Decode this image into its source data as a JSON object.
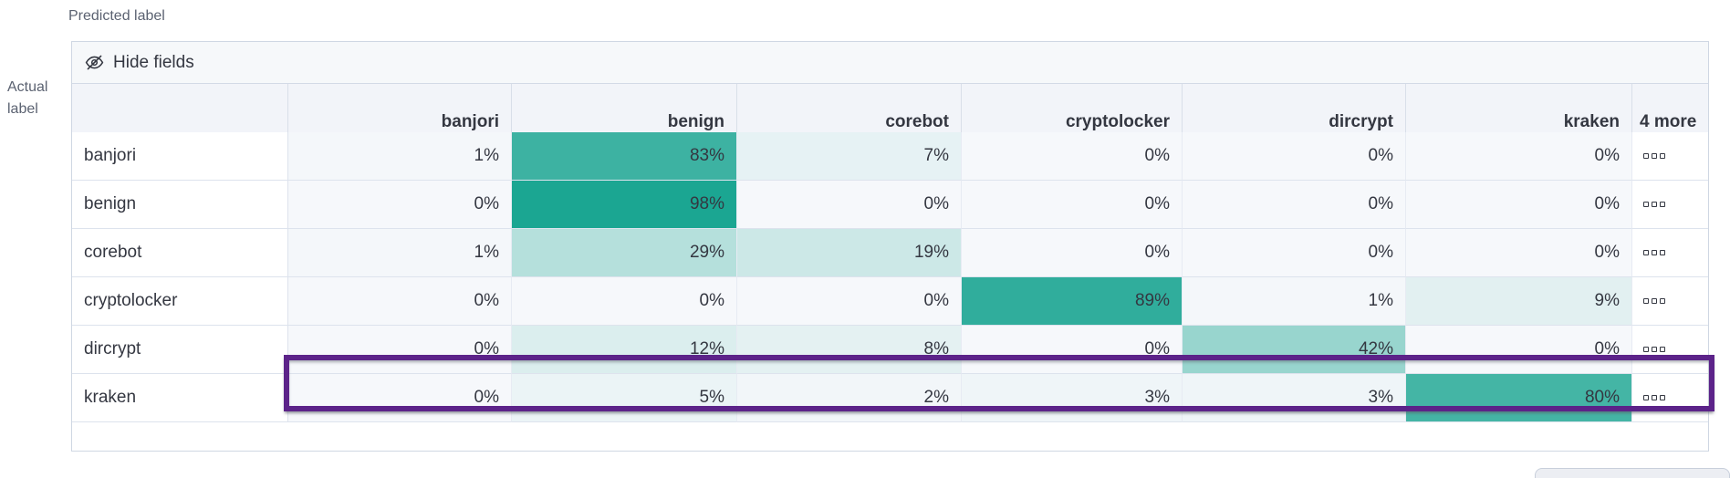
{
  "labels": {
    "predicted": "Predicted label",
    "actual": [
      "Actual",
      "label"
    ]
  },
  "toolbar": {
    "hide_fields": "Hide fields"
  },
  "icons": {
    "toolbar_icon": "eye-closed-icon",
    "row_actions_icon": "boxes-horizontal-icon"
  },
  "chart_data": {
    "type": "heatmap",
    "subtype": "confusion-matrix",
    "axes": {
      "x_title": "Predicted label",
      "y_title": "Actual label"
    },
    "columns": [
      "banjori",
      "benign",
      "corebot",
      "cryptolocker",
      "dircrypt",
      "kraken"
    ],
    "extra_columns_label": "4 more",
    "value_suffix": "%",
    "rows": [
      {
        "label": "banjori",
        "values": [
          1,
          83,
          7,
          0,
          0,
          0
        ],
        "highlighted": false
      },
      {
        "label": "benign",
        "values": [
          0,
          98,
          0,
          0,
          0,
          0
        ],
        "highlighted": false
      },
      {
        "label": "corebot",
        "values": [
          1,
          29,
          19,
          0,
          0,
          0
        ],
        "highlighted": false
      },
      {
        "label": "cryptolocker",
        "values": [
          0,
          0,
          0,
          89,
          1,
          9
        ],
        "highlighted": false
      },
      {
        "label": "dircrypt",
        "values": [
          0,
          12,
          8,
          0,
          42,
          0
        ],
        "highlighted": true
      },
      {
        "label": "kraken",
        "values": [
          0,
          5,
          2,
          3,
          3,
          80
        ],
        "highlighted": false
      }
    ],
    "colors": {
      "heat_accent": "#17A490",
      "cell_base": "#F6F8FB",
      "highlight_border": "#5C2389"
    },
    "legend": "none",
    "grid": true
  }
}
